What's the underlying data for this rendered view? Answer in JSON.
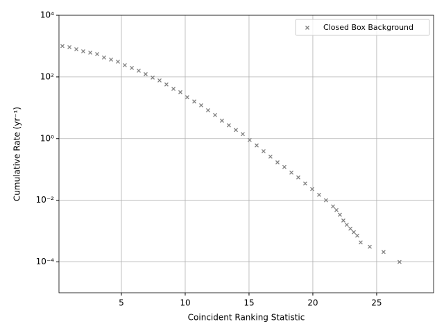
{
  "chart_data": {
    "type": "scatter",
    "xlabel": "Coincident Ranking Statistic",
    "ylabel": "Cumulative Rate (yr⁻¹)",
    "log_y": true,
    "grid": true,
    "legend": "upper right",
    "xlim": [
      0.11,
      29.46
    ],
    "ylim": [
      1e-05,
      10000
    ],
    "xticks": [
      5,
      10,
      15,
      20,
      25
    ],
    "yticks": [
      {
        "value": 0.0001,
        "label": "10⁻⁴"
      },
      {
        "value": 0.01,
        "label": "10⁻²"
      },
      {
        "value": 1,
        "label": "10⁰"
      },
      {
        "value": 100,
        "label": "10²"
      },
      {
        "value": 10000,
        "label": "10⁴"
      }
    ],
    "series": [
      {
        "name": "Closed Box Background",
        "color": "#808080",
        "marker": "x",
        "x": [
          0.38,
          0.93,
          1.47,
          2.01,
          2.56,
          3.1,
          3.64,
          4.19,
          4.73,
          5.27,
          5.82,
          6.36,
          6.9,
          7.45,
          7.99,
          8.53,
          9.08,
          9.62,
          10.16,
          10.71,
          11.25,
          11.79,
          12.34,
          12.88,
          13.42,
          13.97,
          14.51,
          15.05,
          15.6,
          16.14,
          16.68,
          17.23,
          17.77,
          18.32,
          18.86,
          19.4,
          19.95,
          20.49,
          21.03,
          21.58,
          21.85,
          22.12,
          22.39,
          22.66,
          22.94,
          23.21,
          23.48,
          23.75,
          24.46,
          25.54,
          26.79
        ],
        "values": [
          1000,
          925,
          792,
          678,
          612,
          552,
          426,
          365,
          312,
          241,
          196,
          159,
          123,
          95,
          77,
          57,
          41,
          32,
          22,
          16,
          12,
          8.3,
          5.8,
          3.8,
          2.7,
          1.9,
          1.4,
          0.9,
          0.6,
          0.39,
          0.26,
          0.17,
          0.12,
          0.079,
          0.055,
          0.035,
          0.023,
          0.015,
          0.01,
          0.0063,
          0.0048,
          0.0034,
          0.0022,
          0.0016,
          0.0012,
          0.00092,
          0.00071,
          0.00043,
          0.00031,
          0.00021,
          0.0001
        ]
      }
    ]
  }
}
